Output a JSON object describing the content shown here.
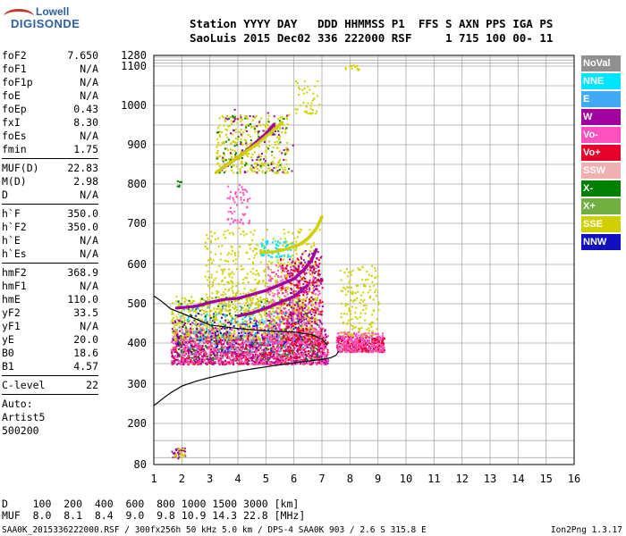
{
  "logo": {
    "brand": "Lowell",
    "product": "DIGISONDE"
  },
  "header": {
    "line1": "Station YYYY DAY   DDD HHMMSS P1  FFS S AXN PPS IGA PS",
    "line2": "SaoLuis 2015 Dec02 336 222000 RSF     1 715 100 00- 11"
  },
  "params": [
    {
      "k": "foF2",
      "v": "7.650"
    },
    {
      "k": "foF1",
      "v": "N/A"
    },
    {
      "k": "foF1p",
      "v": "N/A"
    },
    {
      "k": "foE",
      "v": "N/A"
    },
    {
      "k": "foEp",
      "v": "0.43"
    },
    {
      "k": "fxI",
      "v": "8.30"
    },
    {
      "k": "foEs",
      "v": "N/A"
    },
    {
      "k": "fmin",
      "v": "1.75"
    },
    {
      "sep": true
    },
    {
      "k": "MUF(D)",
      "v": "22.83"
    },
    {
      "k": "M(D)",
      "v": "2.98"
    },
    {
      "k": "D",
      "v": "N/A"
    },
    {
      "sep": true
    },
    {
      "k": "h`F",
      "v": "350.0"
    },
    {
      "k": "h`F2",
      "v": "350.0"
    },
    {
      "k": "h`E",
      "v": "N/A"
    },
    {
      "k": "h`Es",
      "v": "N/A"
    },
    {
      "sep": true
    },
    {
      "k": "hmF2",
      "v": "368.9"
    },
    {
      "k": "hmF1",
      "v": "N/A"
    },
    {
      "k": "hmE",
      "v": "110.0"
    },
    {
      "k": "yF2",
      "v": "33.5"
    },
    {
      "k": "yF1",
      "v": "N/A"
    },
    {
      "k": "yE",
      "v": "20.0"
    },
    {
      "k": "B0",
      "v": "18.6"
    },
    {
      "k": "B1",
      "v": "4.57"
    },
    {
      "sep": true
    },
    {
      "k": "C-level",
      "v": "22"
    },
    {
      "sep": true
    },
    {
      "t": "Auto:"
    },
    {
      "t": "Artist5"
    },
    {
      "t": "500200"
    }
  ],
  "legend": [
    {
      "label": "NoVal",
      "color": "#909090"
    },
    {
      "label": "NNE",
      "color": "#00e5ff"
    },
    {
      "label": "E",
      "color": "#3fa9f5"
    },
    {
      "label": "W",
      "color": "#a000a0"
    },
    {
      "label": "Vo-",
      "color": "#ff4fc0"
    },
    {
      "label": "Vo+",
      "color": "#e8002a"
    },
    {
      "label": "SSW",
      "color": "#f0b0b0"
    },
    {
      "label": "X-",
      "color": "#008000"
    },
    {
      "label": "X+",
      "color": "#70b040"
    },
    {
      "label": "SSE",
      "color": "#d0d000"
    },
    {
      "label": "NNW",
      "color": "#1010c0"
    }
  ],
  "dtable": {
    "line1": "D    100  200  400  600  800 1000 1500 3000 [km]",
    "line2": "MUF  8.0  8.1  8.4  9.0  9.8 10.9 14.3 22.8 [MHz]"
  },
  "footer": "SAA0K_2015336222000.RSF / 300fx256h 50 kHz 5.0 km / DPS-4 SAA0K 903 / 2.6 S 315.8 E",
  "version": "Ion2Png 1.3.17",
  "chart_data": {
    "type": "scatter",
    "xlim": [
      1,
      16
    ],
    "ylim": [
      80,
      1280
    ],
    "x_ticks": [
      1,
      2,
      3,
      4,
      5,
      6,
      7,
      8,
      9,
      10,
      11,
      12,
      13,
      14,
      15,
      16
    ],
    "y_ticks": [
      80,
      200,
      300,
      400,
      500,
      600,
      700,
      800,
      900,
      1000,
      1100,
      1280
    ],
    "grid": true,
    "profile": {
      "x": [
        1.0,
        1.3,
        1.6,
        2.0,
        2.5,
        3.0,
        3.5,
        4.0,
        4.5,
        5.0,
        5.5,
        6.0,
        6.5,
        7.0,
        7.3,
        7.5,
        7.6
      ],
      "y": [
        245,
        262,
        278,
        295,
        307,
        316,
        324,
        331,
        337,
        342,
        347,
        352,
        356,
        360,
        364,
        370,
        380
      ]
    },
    "profile_upper": {
      "x": [
        1.0,
        1.3,
        1.6,
        2.0,
        3.0,
        4.0,
        5.0,
        6.0,
        6.6,
        7.0,
        7.2
      ],
      "y": [
        520,
        505,
        487,
        476,
        446,
        437,
        431,
        428,
        422,
        410,
        395
      ]
    },
    "echo_regions": [
      {
        "color": "#e8002a",
        "x0": 1.6,
        "x1": 7.2,
        "y0": 350,
        "y1": 420,
        "n": 900
      },
      {
        "color": "#ff4fc0",
        "x0": 1.6,
        "x1": 7.2,
        "y0": 350,
        "y1": 440,
        "n": 900
      },
      {
        "color": "#d0d000",
        "x0": 1.6,
        "x1": 6.8,
        "y0": 410,
        "y1": 520,
        "n": 700
      },
      {
        "color": "#a000a0",
        "x0": 1.6,
        "x1": 7.2,
        "y0": 350,
        "y1": 460,
        "n": 300
      },
      {
        "color": "#1010c0",
        "x0": 1.8,
        "x1": 6.5,
        "y0": 380,
        "y1": 480,
        "n": 120
      },
      {
        "color": "#008000",
        "x0": 1.8,
        "x1": 7.0,
        "y0": 360,
        "y1": 520,
        "n": 150
      },
      {
        "color": "#3fa9f5",
        "x0": 1.8,
        "x1": 6.5,
        "y0": 380,
        "y1": 500,
        "n": 90
      },
      {
        "color": "#00e5ff",
        "x0": 1.8,
        "x1": 6.0,
        "y0": 400,
        "y1": 480,
        "n": 60
      },
      {
        "color": "#909090",
        "x0": 1.8,
        "x1": 7.0,
        "y0": 360,
        "y1": 500,
        "n": 80
      },
      {
        "color": "#d0d000",
        "x0": 2.8,
        "x1": 6.9,
        "y0": 480,
        "y1": 690,
        "n": 500
      },
      {
        "color": "#ff4fc0",
        "x0": 5.0,
        "x1": 6.9,
        "y0": 400,
        "y1": 600,
        "n": 400
      },
      {
        "color": "#e8002a",
        "x0": 5.5,
        "x1": 7.0,
        "y0": 380,
        "y1": 620,
        "n": 250
      },
      {
        "color": "#a000a0",
        "x0": 5.8,
        "x1": 7.0,
        "y0": 450,
        "y1": 640,
        "n": 120
      },
      {
        "color": "#00e5ff",
        "x0": 4.8,
        "x1": 5.9,
        "y0": 620,
        "y1": 660,
        "n": 60
      },
      {
        "color": "#e8002a",
        "x0": 7.5,
        "x1": 9.2,
        "y0": 380,
        "y1": 420,
        "n": 300
      },
      {
        "color": "#ff4fc0",
        "x0": 7.5,
        "x1": 9.2,
        "y0": 380,
        "y1": 430,
        "n": 250
      },
      {
        "color": "#d0d000",
        "x0": 7.6,
        "x1": 9.0,
        "y0": 420,
        "y1": 600,
        "n": 150
      },
      {
        "color": "#d0d000",
        "x0": 3.2,
        "x1": 5.8,
        "y0": 830,
        "y1": 980,
        "n": 300
      },
      {
        "color": "#008000",
        "x0": 3.2,
        "x1": 5.8,
        "y0": 830,
        "y1": 980,
        "n": 60
      },
      {
        "color": "#a000a0",
        "x0": 3.4,
        "x1": 6.0,
        "y0": 830,
        "y1": 1000,
        "n": 60
      },
      {
        "color": "#ff4fc0",
        "x0": 3.6,
        "x1": 4.4,
        "y0": 700,
        "y1": 800,
        "n": 60
      },
      {
        "color": "#d0d000",
        "x0": 6.0,
        "x1": 6.9,
        "y0": 980,
        "y1": 1070,
        "n": 40
      },
      {
        "color": "#d0d000",
        "x0": 7.8,
        "x1": 8.4,
        "y0": 1090,
        "y1": 1130,
        "n": 15
      },
      {
        "color": "#a000a0",
        "x0": 1.6,
        "x1": 2.1,
        "y0": 100,
        "y1": 130,
        "n": 30
      },
      {
        "color": "#d0d000",
        "x0": 1.6,
        "x1": 2.1,
        "y0": 100,
        "y1": 130,
        "n": 20
      },
      {
        "color": "#008000",
        "x0": 1.8,
        "x1": 2.0,
        "y0": 795,
        "y1": 810,
        "n": 6
      }
    ],
    "traces": [
      {
        "color": "#a000a0",
        "x": [
          1.8,
          2.5,
          3.0,
          3.5,
          4.0,
          4.5,
          5.0,
          5.5,
          6.0,
          6.3,
          6.6,
          6.8
        ],
        "y": [
          490,
          495,
          505,
          512,
          515,
          525,
          535,
          550,
          565,
          585,
          610,
          640
        ]
      },
      {
        "color": "#d0d000",
        "x": [
          4.8,
          5.3,
          5.8,
          6.2,
          6.5,
          6.8,
          7.0
        ],
        "y": [
          630,
          632,
          640,
          650,
          665,
          690,
          720
        ]
      },
      {
        "color": "#a000a0",
        "x": [
          4.0,
          4.5,
          5.0,
          5.5,
          6.0,
          6.5
        ],
        "y": [
          470,
          478,
          490,
          505,
          520,
          550
        ]
      },
      {
        "color": "#a000a0",
        "x": [
          3.4,
          3.8,
          4.2,
          4.6,
          5.0,
          5.3
        ],
        "y": [
          840,
          860,
          880,
          905,
          930,
          955
        ]
      },
      {
        "color": "#d0d000",
        "x": [
          3.2,
          3.7,
          4.2,
          4.7,
          5.2,
          5.6
        ],
        "y": [
          830,
          855,
          880,
          905,
          935,
          960
        ]
      }
    ]
  }
}
